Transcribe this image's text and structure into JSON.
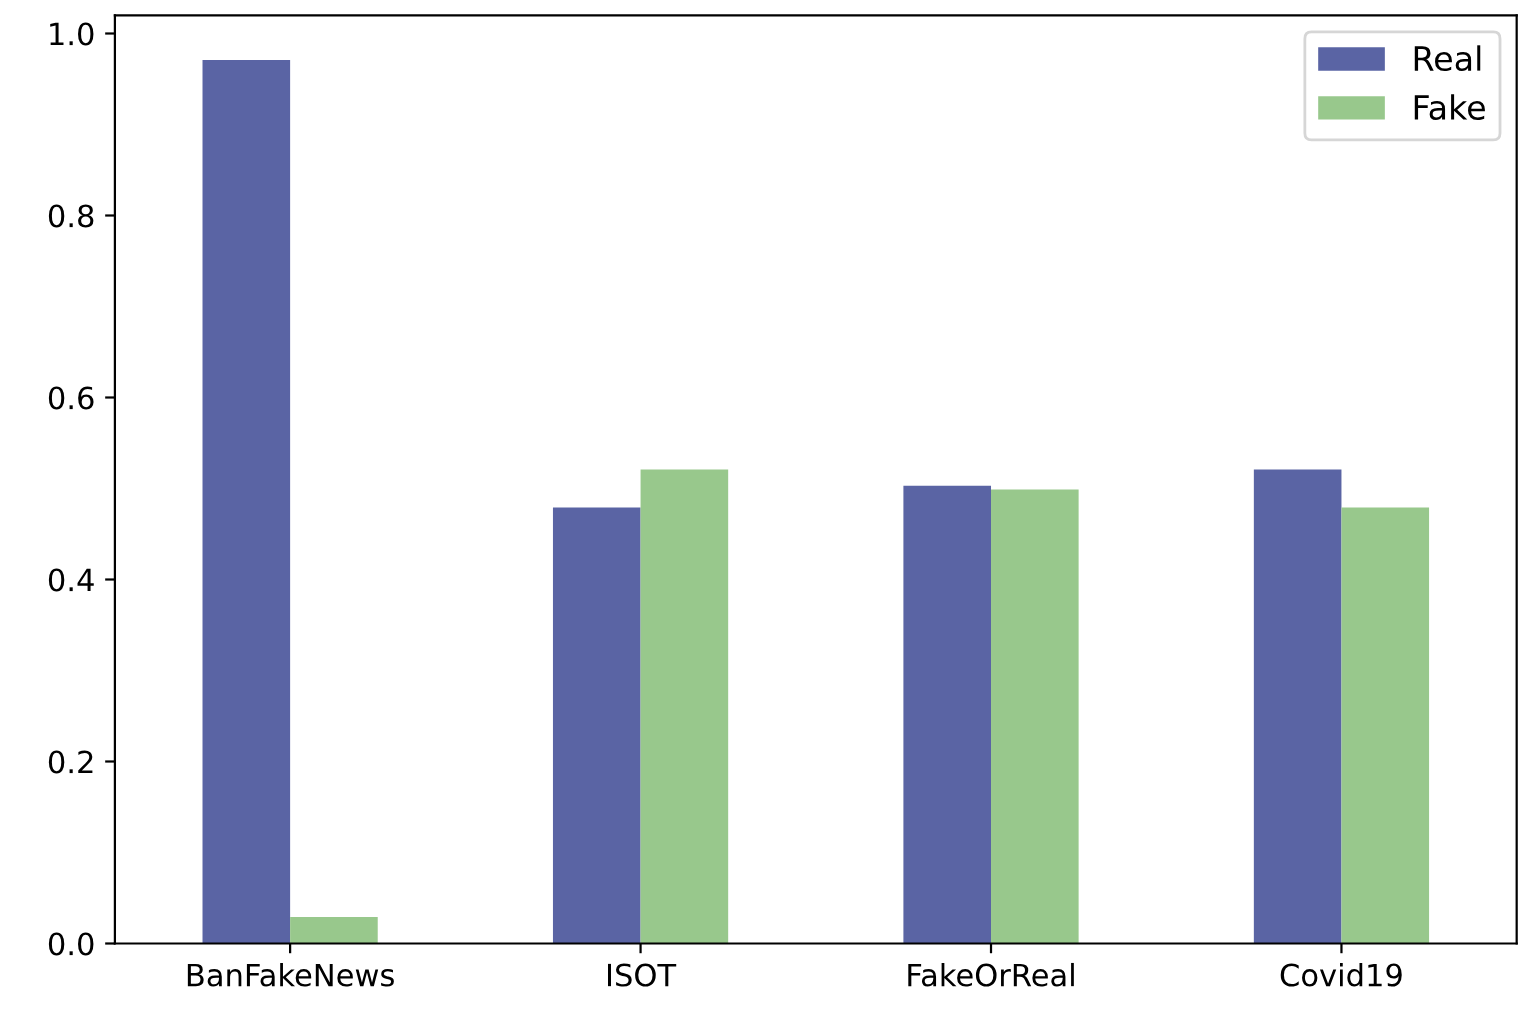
{
  "chart_data": {
    "type": "bar",
    "categories": [
      "BanFakeNews",
      "ISOT",
      "FakeOrReal",
      "Covid19"
    ],
    "series": [
      {
        "name": "Real",
        "color": "#5a64a4",
        "values": [
          0.971,
          0.479,
          0.503,
          0.521
        ]
      },
      {
        "name": "Fake",
        "color": "#98c88c",
        "values": [
          0.029,
          0.521,
          0.499,
          0.479
        ]
      }
    ],
    "ylim": [
      0,
      1.02
    ],
    "yticks": [
      {
        "value": 0,
        "label": "0.0"
      },
      {
        "value": 0.2,
        "label": "0.2"
      },
      {
        "value": 0.4,
        "label": "0.4"
      },
      {
        "value": 0.6,
        "label": "0.6"
      },
      {
        "value": 0.8,
        "label": "0.8"
      },
      {
        "value": 1,
        "label": "1.0"
      }
    ],
    "legend": "top right",
    "grid": false
  }
}
